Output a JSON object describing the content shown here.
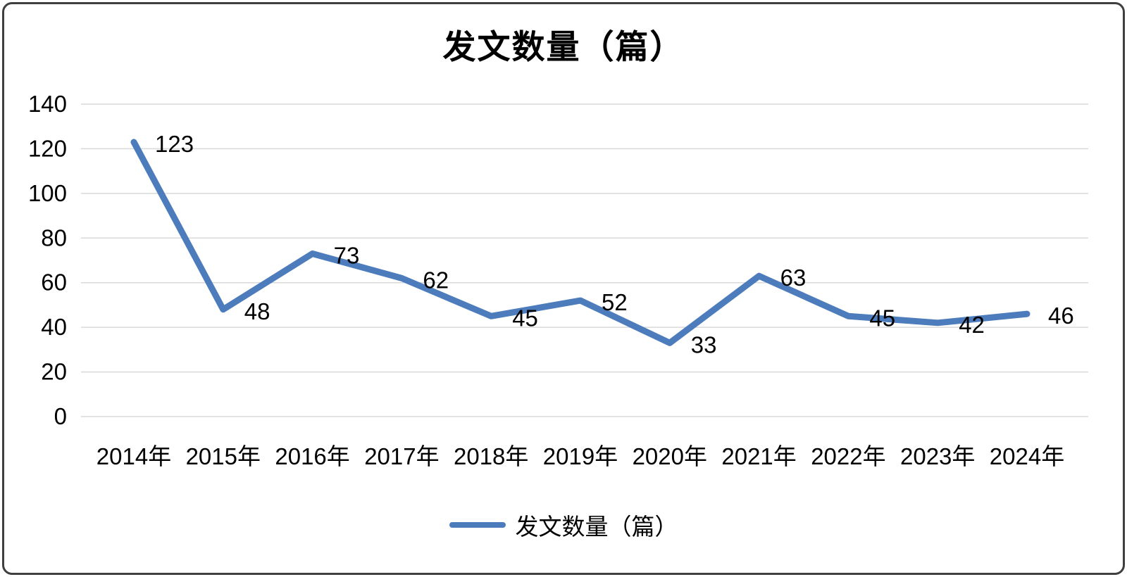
{
  "chart_data": {
    "type": "line",
    "title": "发文数量（篇）",
    "categories": [
      "2014年",
      "2015年",
      "2016年",
      "2017年",
      "2018年",
      "2019年",
      "2020年",
      "2021年",
      "2022年",
      "2023年",
      "2024年"
    ],
    "series": [
      {
        "name": "发文数量（篇）",
        "values": [
          123,
          48,
          73,
          62,
          45,
          52,
          33,
          63,
          45,
          42,
          46
        ]
      }
    ],
    "ylim": [
      0,
      140
    ],
    "ytick_step": 20,
    "grid": true,
    "legend_position": "bottom",
    "line_color": "#4d7cbc",
    "grid_color": "#d9d9d9",
    "text_color": "#000000"
  }
}
